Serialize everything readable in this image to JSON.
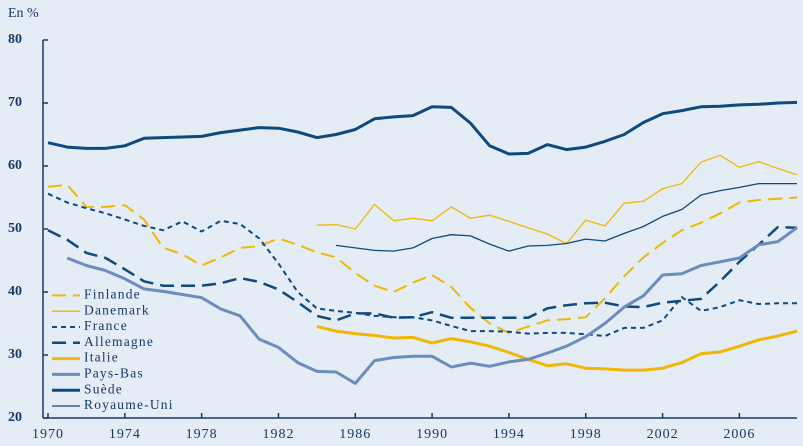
{
  "chart_data": {
    "type": "line",
    "y_label": "En %",
    "x": [
      1970,
      1971,
      1972,
      1973,
      1974,
      1975,
      1976,
      1977,
      1978,
      1979,
      1980,
      1981,
      1982,
      1983,
      1984,
      1985,
      1986,
      1987,
      1988,
      1989,
      1990,
      1991,
      1992,
      1993,
      1994,
      1995,
      1996,
      1997,
      1998,
      1999,
      2000,
      2001,
      2002,
      2003,
      2004,
      2005,
      2006,
      2007,
      2008,
      2009
    ],
    "xlim": [
      1970,
      2009
    ],
    "xticks": [
      1970,
      1974,
      1978,
      1982,
      1986,
      1990,
      1994,
      1998,
      2002,
      2006
    ],
    "ylim": [
      20,
      80
    ],
    "yticks": [
      20,
      30,
      40,
      50,
      60,
      70,
      80
    ],
    "grid": false,
    "legend": "lower-left",
    "series": [
      {
        "name": "Finlande",
        "color": "#f2b705",
        "dash": "long",
        "width": 2,
        "values": [
          56.7,
          57.0,
          53.5,
          53.5,
          53.8,
          51.5,
          47.0,
          46.0,
          44.2,
          45.5,
          47.0,
          47.3,
          48.5,
          47.5,
          46.3,
          45.5,
          43.0,
          41.0,
          40.0,
          41.5,
          42.7,
          40.8,
          37.5,
          35.0,
          33.5,
          34.5,
          35.5,
          35.7,
          36.0,
          39.0,
          42.5,
          45.5,
          47.8,
          49.8,
          51.0,
          52.5,
          54.2,
          54.6,
          54.8,
          55.0
        ]
      },
      {
        "name": "Danemark",
        "color": "#f2b705",
        "dash": "solid",
        "width": 1.3,
        "values": [
          null,
          null,
          null,
          null,
          null,
          null,
          null,
          null,
          null,
          null,
          null,
          null,
          null,
          null,
          50.6,
          50.7,
          50.0,
          53.9,
          51.3,
          51.7,
          51.3,
          53.5,
          51.7,
          52.2,
          51.2,
          50.2,
          49.2,
          47.7,
          51.4,
          50.5,
          54.1,
          54.4,
          56.4,
          57.2,
          60.6,
          61.7,
          59.8,
          60.7,
          59.6,
          58.6
        ]
      },
      {
        "name": "France",
        "color": "#0e4a7e",
        "dash": "short",
        "width": 2,
        "values": [
          55.6,
          54.2,
          53.3,
          52.5,
          51.5,
          50.5,
          49.8,
          51.2,
          49.6,
          51.3,
          50.8,
          48.5,
          44.5,
          40.0,
          37.4,
          37.0,
          36.7,
          36.2,
          36.0,
          36.0,
          35.5,
          34.6,
          33.8,
          33.8,
          33.7,
          33.4,
          33.5,
          33.5,
          33.3,
          33.0,
          34.3,
          34.3,
          35.5,
          39.2,
          37.0,
          37.6,
          38.7,
          38.1,
          38.2,
          38.2
        ]
      },
      {
        "name": "Allemagne",
        "color": "#0e4a7e",
        "dash": "long",
        "width": 2.5,
        "values": [
          49.8,
          48.3,
          46.2,
          45.4,
          43.6,
          41.7,
          41.0,
          41.0,
          41.0,
          41.4,
          42.2,
          41.6,
          40.4,
          38.4,
          36.2,
          35.5,
          36.6,
          36.6,
          35.9,
          36.0,
          36.8,
          35.9,
          35.9,
          35.9,
          35.9,
          35.9,
          37.4,
          37.9,
          38.2,
          38.3,
          37.7,
          37.6,
          38.3,
          38.6,
          38.9,
          41.7,
          44.8,
          47.5,
          50.3,
          50.2
        ]
      },
      {
        "name": "Italie",
        "color": "#f2b705",
        "dash": "solid",
        "width": 3,
        "values": [
          null,
          null,
          null,
          null,
          null,
          null,
          null,
          null,
          null,
          null,
          null,
          null,
          null,
          null,
          34.5,
          33.8,
          33.4,
          33.1,
          32.7,
          32.8,
          31.9,
          32.6,
          32.1,
          31.4,
          30.4,
          29.3,
          28.3,
          28.6,
          27.9,
          27.8,
          27.6,
          27.6,
          27.9,
          28.8,
          30.2,
          30.5,
          31.4,
          32.4,
          33.0,
          33.8
        ]
      },
      {
        "name": "Pays-Bas",
        "color": "#6b8cbf",
        "dash": "solid",
        "width": 3,
        "values": [
          null,
          45.4,
          44.2,
          43.4,
          42.1,
          40.5,
          40.1,
          39.6,
          39.1,
          37.3,
          36.2,
          32.5,
          31.2,
          28.8,
          27.4,
          27.3,
          25.5,
          29.1,
          29.6,
          29.8,
          29.8,
          28.1,
          28.7,
          28.2,
          28.9,
          29.3,
          30.3,
          31.4,
          32.9,
          35.0,
          37.6,
          39.4,
          42.7,
          42.9,
          44.2,
          44.8,
          45.4,
          47.5,
          48.0,
          50.2
        ]
      },
      {
        "name": "Suède",
        "color": "#0e4a7e",
        "dash": "solid",
        "width": 3,
        "values": [
          63.7,
          63.0,
          62.8,
          62.8,
          63.2,
          64.4,
          64.5,
          64.6,
          64.7,
          65.3,
          65.7,
          66.1,
          66.0,
          65.4,
          64.5,
          65.0,
          65.8,
          67.5,
          67.8,
          68.0,
          69.4,
          69.3,
          66.8,
          63.2,
          61.9,
          62.0,
          63.4,
          62.6,
          63.0,
          63.9,
          65.0,
          66.9,
          68.3,
          68.8,
          69.4,
          69.5,
          69.7,
          69.8,
          70.0,
          70.1
        ]
      },
      {
        "name": "Royaume-Uni",
        "color": "#0e4a7e",
        "dash": "solid",
        "width": 1.3,
        "values": [
          null,
          null,
          null,
          null,
          null,
          null,
          null,
          null,
          null,
          null,
          null,
          null,
          null,
          null,
          null,
          47.4,
          47.0,
          46.6,
          46.5,
          47.0,
          48.5,
          49.1,
          48.9,
          47.6,
          46.5,
          47.3,
          47.4,
          47.7,
          48.4,
          48.1,
          49.3,
          50.4,
          52.0,
          53.1,
          55.4,
          56.1,
          56.6,
          57.2,
          57.2,
          57.2
        ]
      }
    ]
  }
}
